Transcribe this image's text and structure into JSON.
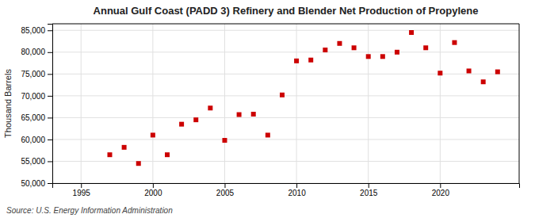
{
  "chart_data": {
    "type": "scatter",
    "title": "Annual Gulf Coast (PADD 3) Refinery and Blender Net Production of Propylene",
    "ylabel": "Thousand Barrels",
    "source": "Source: U.S. Energy Information Administration",
    "x": [
      1997,
      1998,
      1999,
      2000,
      2001,
      2002,
      2003,
      2004,
      2005,
      2006,
      2007,
      2008,
      2009,
      2010,
      2011,
      2012,
      2013,
      2014,
      2015,
      2016,
      2017,
      2018,
      2019,
      2020,
      2021,
      2022,
      2023,
      2024
    ],
    "values": [
      56500,
      58200,
      54500,
      61000,
      56500,
      63500,
      64500,
      67200,
      59800,
      65700,
      65800,
      61000,
      70200,
      78000,
      78200,
      80500,
      82000,
      81000,
      79000,
      79000,
      80000,
      84500,
      81000,
      75200,
      82200,
      75700,
      73200,
      75500
    ],
    "color": "#cc0000",
    "marker": "square",
    "xlim": [
      1993,
      2025.5
    ],
    "ylim": [
      50000,
      86500
    ],
    "xticks": [
      1995,
      2000,
      2005,
      2010,
      2015,
      2020
    ],
    "yticks": [
      {
        "value": 50000,
        "label": "50,000"
      },
      {
        "value": 55000,
        "label": "55,000"
      },
      {
        "value": 60000,
        "label": "60,000"
      },
      {
        "value": 65000,
        "label": "65,000"
      },
      {
        "value": 70000,
        "label": "70,000"
      },
      {
        "value": 75000,
        "label": "75,000"
      },
      {
        "value": 80000,
        "label": "80,000"
      },
      {
        "value": 85000,
        "label": "85,000"
      }
    ],
    "grid": true
  }
}
